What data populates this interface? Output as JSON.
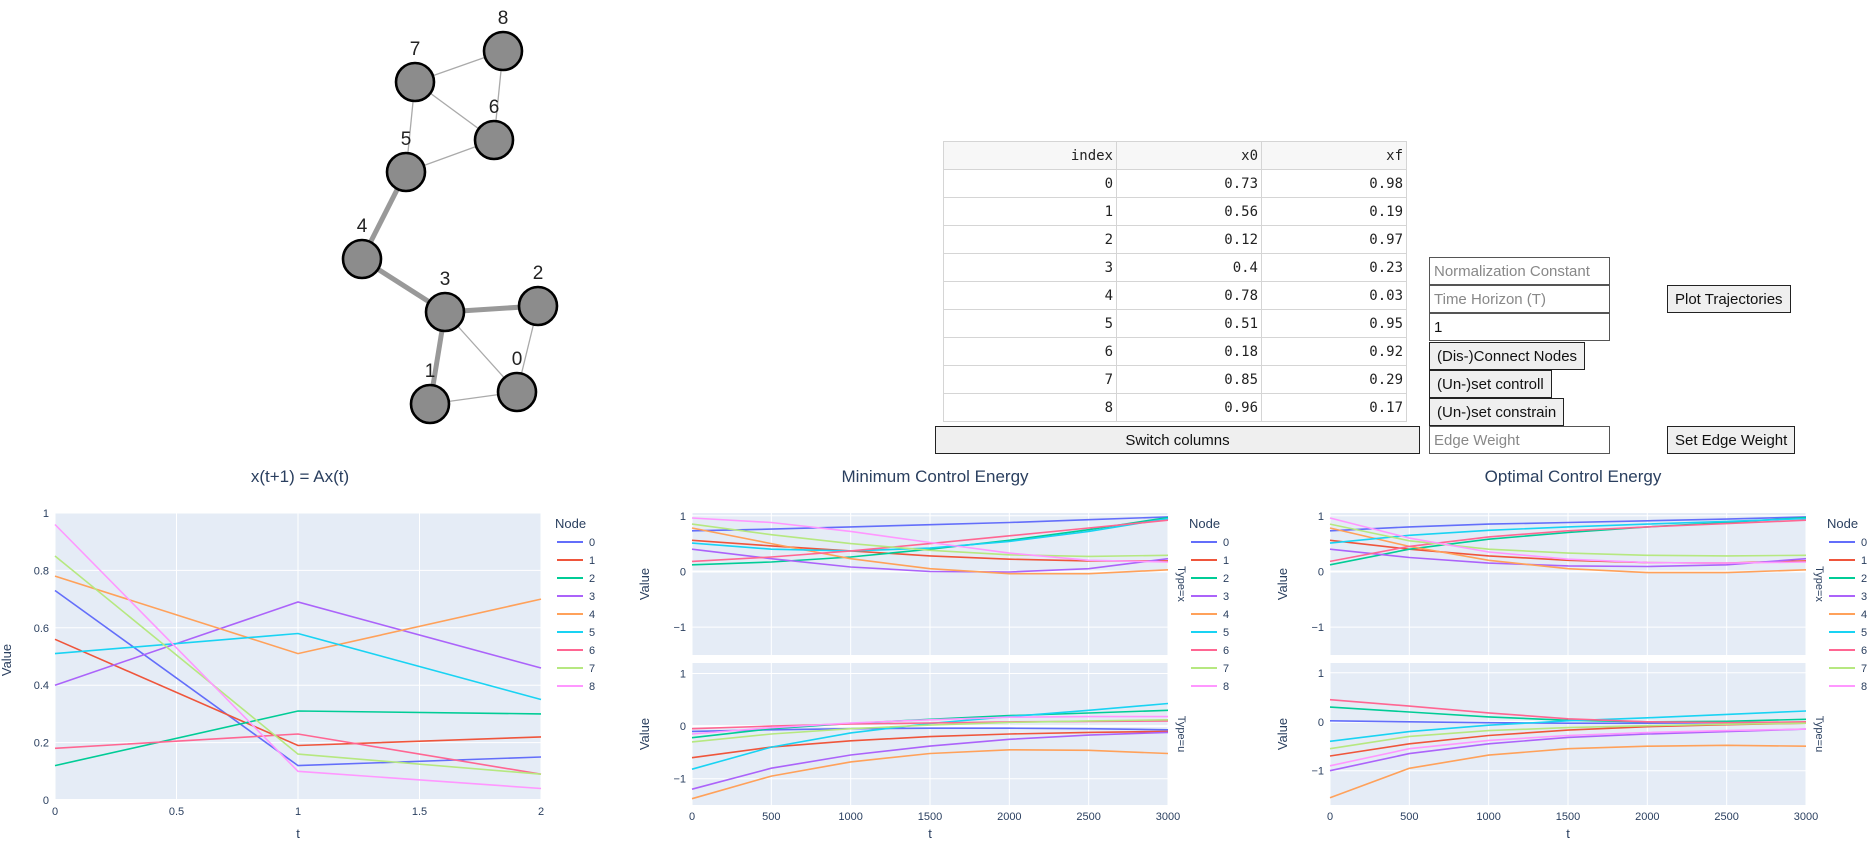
{
  "graph": {
    "nodes": [
      {
        "id": "0",
        "label": "0"
      },
      {
        "id": "1",
        "label": "1"
      },
      {
        "id": "2",
        "label": "2"
      },
      {
        "id": "3",
        "label": "3"
      },
      {
        "id": "4",
        "label": "4"
      },
      {
        "id": "5",
        "label": "5"
      },
      {
        "id": "6",
        "label": "6"
      },
      {
        "id": "7",
        "label": "7"
      },
      {
        "id": "8",
        "label": "8"
      }
    ],
    "edges": [
      {
        "from": "7",
        "to": "8",
        "thick": false
      },
      {
        "from": "8",
        "to": "6",
        "thick": false
      },
      {
        "from": "7",
        "to": "6",
        "thick": false
      },
      {
        "from": "7",
        "to": "5",
        "thick": false
      },
      {
        "from": "5",
        "to": "6",
        "thick": false
      },
      {
        "from": "5",
        "to": "4",
        "thick": true
      },
      {
        "from": "4",
        "to": "3",
        "thick": true
      },
      {
        "from": "3",
        "to": "2",
        "thick": true
      },
      {
        "from": "3",
        "to": "1",
        "thick": true
      },
      {
        "from": "3",
        "to": "0",
        "thick": false
      },
      {
        "from": "2",
        "to": "0",
        "thick": false
      },
      {
        "from": "1",
        "to": "0",
        "thick": false
      }
    ]
  },
  "table": {
    "headers": [
      "index",
      "x0",
      "xf"
    ],
    "rows": [
      [
        "0",
        "0.73",
        "0.98"
      ],
      [
        "1",
        "0.56",
        "0.19"
      ],
      [
        "2",
        "0.12",
        "0.97"
      ],
      [
        "3",
        "0.4",
        "0.23"
      ],
      [
        "4",
        "0.78",
        "0.03"
      ],
      [
        "5",
        "0.51",
        "0.95"
      ],
      [
        "6",
        "0.18",
        "0.92"
      ],
      [
        "7",
        "0.85",
        "0.29"
      ],
      [
        "8",
        "0.96",
        "0.17"
      ]
    ],
    "switch_label": "Switch columns"
  },
  "controls": {
    "normalization_placeholder": "Normalization Constant",
    "normalization_value": "",
    "time_horizon_placeholder": "Time Horizon (T)",
    "time_horizon_value": "",
    "node_input_value": "1",
    "connect_label": "(Dis-)Connect Nodes",
    "controll_label": "(Un-)set controll",
    "constrain_label": "(Un-)set constrain",
    "edge_weight_placeholder": "Edge Weight",
    "edge_weight_value": "",
    "plot_label": "Plot Trajectories",
    "set_weight_label": "Set Edge Weight"
  },
  "colors": {
    "series": [
      "#636efa",
      "#EF553B",
      "#00cc96",
      "#ab63fa",
      "#FFA15A",
      "#19d3f3",
      "#FF6692",
      "#B6E880",
      "#FF97FF"
    ],
    "plot_bg": "#e5ecf6",
    "title": "#2a3f5f"
  },
  "chart_data": [
    {
      "type": "line",
      "title": "x(t+1) = Ax(t)",
      "xlabel": "t",
      "ylabel": "Value",
      "legend_title": "Node",
      "legend_position": "right",
      "xlim": [
        0,
        2
      ],
      "ylim": [
        0,
        1
      ],
      "xticks": [
        "0",
        "0.5",
        "1",
        "1.5",
        "2"
      ],
      "yticks": [
        "0",
        "0.2",
        "0.4",
        "0.6",
        "0.8",
        "1"
      ],
      "x": [
        0,
        1,
        2
      ],
      "series": [
        {
          "name": "0",
          "values": [
            0.73,
            0.12,
            0.15
          ]
        },
        {
          "name": "1",
          "values": [
            0.56,
            0.19,
            0.22
          ]
        },
        {
          "name": "2",
          "values": [
            0.12,
            0.31,
            0.3
          ]
        },
        {
          "name": "3",
          "values": [
            0.4,
            0.69,
            0.46
          ]
        },
        {
          "name": "4",
          "values": [
            0.78,
            0.51,
            0.7
          ]
        },
        {
          "name": "5",
          "values": [
            0.51,
            0.58,
            0.35
          ]
        },
        {
          "name": "6",
          "values": [
            0.18,
            0.23,
            0.09
          ]
        },
        {
          "name": "7",
          "values": [
            0.85,
            0.16,
            0.09
          ]
        },
        {
          "name": "8",
          "values": [
            0.96,
            0.1,
            0.04
          ]
        }
      ]
    },
    {
      "type": "line",
      "title": "Minimum Control Energy",
      "xlabel": "t",
      "ylabel": "Value",
      "legend_title": "Node",
      "legend_position": "right",
      "xlim": [
        0,
        3000
      ],
      "xticks": [
        "0",
        "500",
        "1000",
        "1500",
        "2000",
        "2500",
        "3000"
      ],
      "x": [
        0,
        500,
        1000,
        1500,
        2000,
        2500,
        3000
      ],
      "facets": [
        {
          "label": "Type=x",
          "ylim": [
            -1.5,
            1.05
          ],
          "yticks": [
            "1",
            "0",
            "−1"
          ],
          "series": [
            {
              "name": "0",
              "values": [
                0.73,
                0.76,
                0.8,
                0.84,
                0.88,
                0.93,
                0.98
              ]
            },
            {
              "name": "1",
              "values": [
                0.56,
                0.46,
                0.37,
                0.28,
                0.22,
                0.19,
                0.19
              ]
            },
            {
              "name": "2",
              "values": [
                0.12,
                0.17,
                0.26,
                0.4,
                0.56,
                0.75,
                0.97
              ]
            },
            {
              "name": "3",
              "values": [
                0.4,
                0.23,
                0.08,
                0.0,
                -0.01,
                0.05,
                0.23
              ]
            },
            {
              "name": "4",
              "values": [
                0.78,
                0.5,
                0.23,
                0.05,
                -0.04,
                -0.04,
                0.03
              ]
            },
            {
              "name": "5",
              "values": [
                0.51,
                0.4,
                0.37,
                0.42,
                0.54,
                0.72,
                0.95
              ]
            },
            {
              "name": "6",
              "values": [
                0.18,
                0.26,
                0.37,
                0.5,
                0.64,
                0.78,
                0.92
              ]
            },
            {
              "name": "7",
              "values": [
                0.85,
                0.66,
                0.5,
                0.38,
                0.3,
                0.27,
                0.29
              ]
            },
            {
              "name": "8",
              "values": [
                0.96,
                0.88,
                0.72,
                0.52,
                0.33,
                0.2,
                0.17
              ]
            }
          ]
        },
        {
          "label": "Type=u",
          "ylim": [
            -1.5,
            1.2
          ],
          "yticks": [
            "1",
            "0",
            "−1"
          ],
          "series": [
            {
              "name": "0",
              "values": [
                -0.1,
                -0.07,
                -0.05,
                -0.04,
                -0.04,
                -0.05,
                -0.07
              ]
            },
            {
              "name": "1",
              "values": [
                -0.6,
                -0.4,
                -0.28,
                -0.2,
                -0.15,
                -0.12,
                -0.1
              ]
            },
            {
              "name": "2",
              "values": [
                -0.22,
                -0.05,
                0.05,
                0.13,
                0.2,
                0.25,
                0.3
              ]
            },
            {
              "name": "3",
              "values": [
                -1.2,
                -0.8,
                -0.55,
                -0.38,
                -0.25,
                -0.17,
                -0.12
              ]
            },
            {
              "name": "4",
              "values": [
                -1.38,
                -0.95,
                -0.68,
                -0.52,
                -0.45,
                -0.46,
                -0.52
              ]
            },
            {
              "name": "5",
              "values": [
                -0.82,
                -0.4,
                -0.13,
                0.05,
                0.18,
                0.3,
                0.43
              ]
            },
            {
              "name": "6",
              "values": [
                -0.05,
                0.0,
                0.04,
                0.06,
                0.08,
                0.09,
                0.1
              ]
            },
            {
              "name": "7",
              "values": [
                -0.3,
                -0.15,
                -0.05,
                0.02,
                0.07,
                0.1,
                0.12
              ]
            },
            {
              "name": "8",
              "values": [
                -0.15,
                -0.03,
                0.06,
                0.12,
                0.17,
                0.18,
                0.18
              ]
            }
          ]
        }
      ]
    },
    {
      "type": "line",
      "title": "Optimal Control Energy",
      "xlabel": "t",
      "ylabel": "Value",
      "legend_title": "Node",
      "legend_position": "right",
      "xlim": [
        0,
        3000
      ],
      "xticks": [
        "0",
        "500",
        "1000",
        "1500",
        "2000",
        "2500",
        "3000"
      ],
      "x": [
        0,
        500,
        1000,
        1500,
        2000,
        2500,
        3000
      ],
      "facets": [
        {
          "label": "Type=x",
          "ylim": [
            -1.5,
            1.05
          ],
          "yticks": [
            "1",
            "0",
            "−1"
          ],
          "series": [
            {
              "name": "0",
              "values": [
                0.73,
                0.8,
                0.85,
                0.88,
                0.91,
                0.94,
                0.98
              ]
            },
            {
              "name": "1",
              "values": [
                0.56,
                0.4,
                0.28,
                0.2,
                0.16,
                0.15,
                0.19
              ]
            },
            {
              "name": "2",
              "values": [
                0.12,
                0.4,
                0.58,
                0.7,
                0.8,
                0.88,
                0.97
              ]
            },
            {
              "name": "3",
              "values": [
                0.4,
                0.25,
                0.15,
                0.1,
                0.09,
                0.12,
                0.23
              ]
            },
            {
              "name": "4",
              "values": [
                0.78,
                0.45,
                0.2,
                0.05,
                -0.02,
                -0.02,
                0.03
              ]
            },
            {
              "name": "5",
              "values": [
                0.51,
                0.65,
                0.74,
                0.8,
                0.85,
                0.9,
                0.95
              ]
            },
            {
              "name": "6",
              "values": [
                0.18,
                0.45,
                0.62,
                0.73,
                0.8,
                0.86,
                0.92
              ]
            },
            {
              "name": "7",
              "values": [
                0.85,
                0.55,
                0.4,
                0.33,
                0.29,
                0.28,
                0.29
              ]
            },
            {
              "name": "8",
              "values": [
                0.96,
                0.6,
                0.35,
                0.22,
                0.16,
                0.15,
                0.17
              ]
            }
          ]
        },
        {
          "label": "Type=u",
          "ylim": [
            -1.7,
            1.2
          ],
          "yticks": [
            "1",
            "0",
            "−1"
          ],
          "series": [
            {
              "name": "0",
              "values": [
                0.02,
                0.0,
                -0.02,
                -0.03,
                -0.03,
                -0.02,
                -0.02
              ]
            },
            {
              "name": "1",
              "values": [
                -0.7,
                -0.45,
                -0.28,
                -0.17,
                -0.1,
                -0.06,
                -0.03
              ]
            },
            {
              "name": "2",
              "values": [
                0.3,
                0.2,
                0.1,
                0.03,
                0.0,
                0.01,
                0.05
              ]
            },
            {
              "name": "3",
              "values": [
                -1.0,
                -0.65,
                -0.45,
                -0.32,
                -0.25,
                -0.2,
                -0.15
              ]
            },
            {
              "name": "4",
              "values": [
                -1.55,
                -0.95,
                -0.68,
                -0.55,
                -0.5,
                -0.48,
                -0.5
              ]
            },
            {
              "name": "5",
              "values": [
                -0.4,
                -0.2,
                -0.07,
                0.02,
                0.08,
                0.15,
                0.22
              ]
            },
            {
              "name": "6",
              "values": [
                0.45,
                0.32,
                0.18,
                0.06,
                0.0,
                -0.02,
                0.0
              ]
            },
            {
              "name": "7",
              "values": [
                -0.55,
                -0.3,
                -0.18,
                -0.12,
                -0.08,
                -0.05,
                -0.03
              ]
            },
            {
              "name": "8",
              "values": [
                -0.9,
                -0.55,
                -0.38,
                -0.28,
                -0.22,
                -0.18,
                -0.15
              ]
            }
          ]
        }
      ]
    }
  ]
}
